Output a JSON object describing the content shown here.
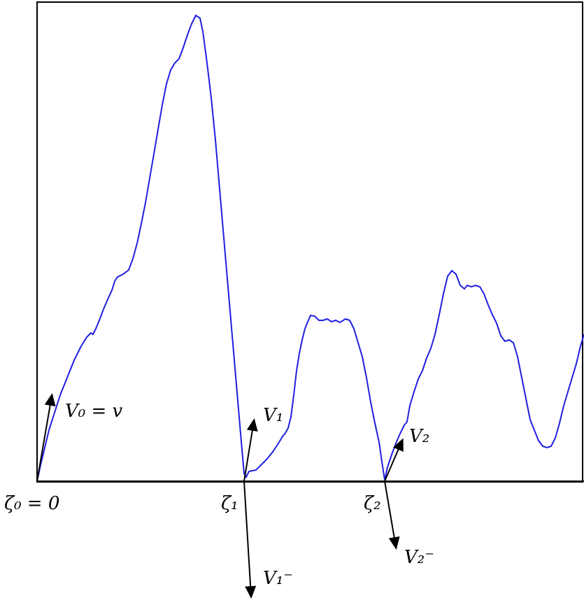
{
  "labels": {
    "zeta0": "ζ₀ = 0",
    "zeta1": "ζ₁",
    "zeta2": "ζ₂",
    "v0": "V₀ = v",
    "v1": "V₁",
    "v1_minus": "V₁⁻",
    "v2": "V₂",
    "v2_minus": "V₂⁻"
  },
  "colors": {
    "curve": "#1f1fe0",
    "axis": "#000000",
    "frame": "#000000"
  }
}
